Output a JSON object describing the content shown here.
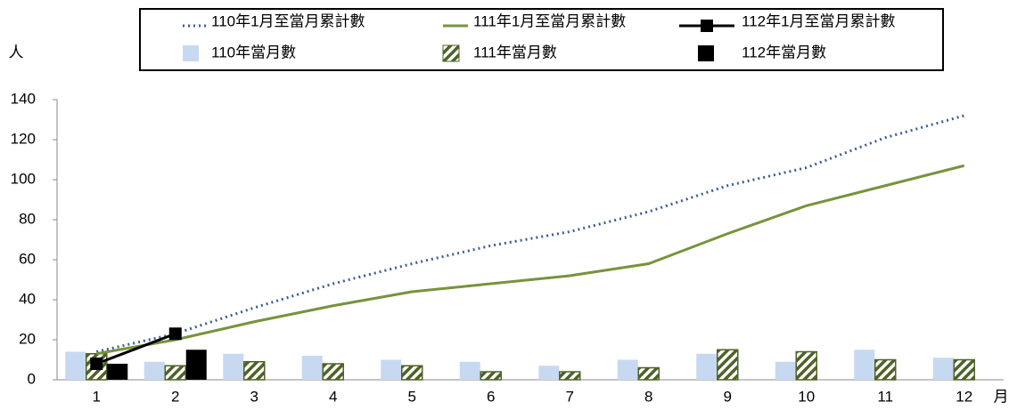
{
  "chart_data": {
    "type": "bar",
    "y_label": "人",
    "x_label": "月",
    "categories": [
      "1",
      "2",
      "3",
      "4",
      "5",
      "6",
      "7",
      "8",
      "9",
      "10",
      "11",
      "12"
    ],
    "ylim": [
      0,
      140
    ],
    "yticks": [
      0,
      20,
      40,
      60,
      80,
      100,
      120,
      140
    ],
    "series": [
      {
        "name": "110年1月至當月累計數",
        "mark": "line",
        "dash": true,
        "color": "#3c5f93",
        "values": [
          14,
          23,
          36,
          48,
          58,
          67,
          74,
          84,
          97,
          106,
          121,
          132
        ]
      },
      {
        "name": "111年1月至當月累計數",
        "mark": "line",
        "color": "#77933c",
        "values": [
          13,
          20,
          29,
          37,
          44,
          48,
          52,
          58,
          73,
          87,
          97,
          107
        ]
      },
      {
        "name": "112年1月至當月累計數",
        "mark": "line",
        "marker": "square",
        "color": "#000000",
        "values": [
          8,
          23,
          null,
          null,
          null,
          null,
          null,
          null,
          null,
          null,
          null,
          null
        ]
      },
      {
        "name": "110年當月數",
        "mark": "bar",
        "color": "#c6d9f1",
        "values": [
          14,
          9,
          13,
          12,
          10,
          9,
          7,
          10,
          13,
          9,
          15,
          11
        ]
      },
      {
        "name": "111年當月數",
        "mark": "bar",
        "pattern": "hatch",
        "color": "#4f6228",
        "values": [
          13,
          7,
          9,
          8,
          7,
          4,
          4,
          6,
          15,
          14,
          10,
          10
        ]
      },
      {
        "name": "112年當月數",
        "mark": "bar",
        "color": "#000000",
        "values": [
          8,
          15,
          null,
          null,
          null,
          null,
          null,
          null,
          null,
          null,
          null,
          null
        ]
      }
    ]
  }
}
